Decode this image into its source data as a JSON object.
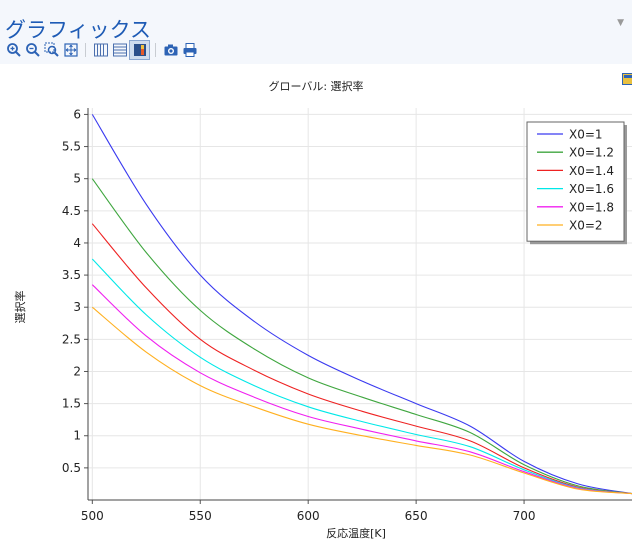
{
  "panel": {
    "title": "グラフィックス"
  },
  "toolbar": {
    "buttons": [
      {
        "icon": "zoom-in-icon"
      },
      {
        "icon": "zoom-out-icon"
      },
      {
        "icon": "zoom-box-icon"
      },
      {
        "icon": "zoom-extents-icon"
      },
      {
        "icon": "grid-icon"
      },
      {
        "icon": "legend-icon"
      },
      {
        "icon": "color-legend-icon"
      },
      {
        "icon": "camera-icon"
      },
      {
        "icon": "print-icon"
      }
    ]
  },
  "chart_data": {
    "type": "line",
    "title": "グローバル: 選択率",
    "xlabel": "反応温度[K]",
    "ylabel": "選択率",
    "xlim": [
      498,
      750
    ],
    "ylim": [
      0,
      6.1
    ],
    "xticks": [
      500,
      550,
      600,
      650,
      700
    ],
    "yticks": [
      0.5,
      1,
      1.5,
      2,
      2.5,
      3,
      3.5,
      4,
      4.5,
      5,
      5.5,
      6
    ],
    "ytick_labels": [
      "0.5",
      "1",
      "1.5",
      "2",
      "2.5",
      "3",
      "3.5",
      "4",
      "4.5",
      "5",
      "5.5",
      "6"
    ],
    "grid": true,
    "legend_position": "top-right",
    "x": [
      500,
      525,
      550,
      575,
      600,
      625,
      650,
      675,
      700,
      725,
      750
    ],
    "series": [
      {
        "name": "X0=1",
        "color": "#3a3af0",
        "values": [
          6.0,
          4.6,
          3.5,
          2.78,
          2.25,
          1.85,
          1.5,
          1.15,
          0.6,
          0.25,
          0.1
        ]
      },
      {
        "name": "X0=1.2",
        "color": "#3fa63f",
        "values": [
          5.0,
          3.85,
          2.95,
          2.35,
          1.9,
          1.6,
          1.33,
          1.05,
          0.55,
          0.22,
          0.1
        ]
      },
      {
        "name": "X0=1.4",
        "color": "#ee2222",
        "values": [
          4.3,
          3.3,
          2.5,
          2.02,
          1.65,
          1.38,
          1.15,
          0.92,
          0.5,
          0.2,
          0.1
        ]
      },
      {
        "name": "X0=1.6",
        "color": "#00e8e8",
        "values": [
          3.75,
          2.88,
          2.22,
          1.78,
          1.45,
          1.22,
          1.02,
          0.83,
          0.47,
          0.19,
          0.1
        ]
      },
      {
        "name": "X0=1.8",
        "color": "#f020f0",
        "values": [
          3.35,
          2.55,
          1.98,
          1.6,
          1.3,
          1.1,
          0.92,
          0.75,
          0.44,
          0.18,
          0.1
        ]
      },
      {
        "name": "X0=2",
        "color": "#ffb020",
        "values": [
          3.0,
          2.3,
          1.78,
          1.45,
          1.18,
          1.0,
          0.85,
          0.7,
          0.42,
          0.17,
          0.1
        ]
      }
    ]
  }
}
